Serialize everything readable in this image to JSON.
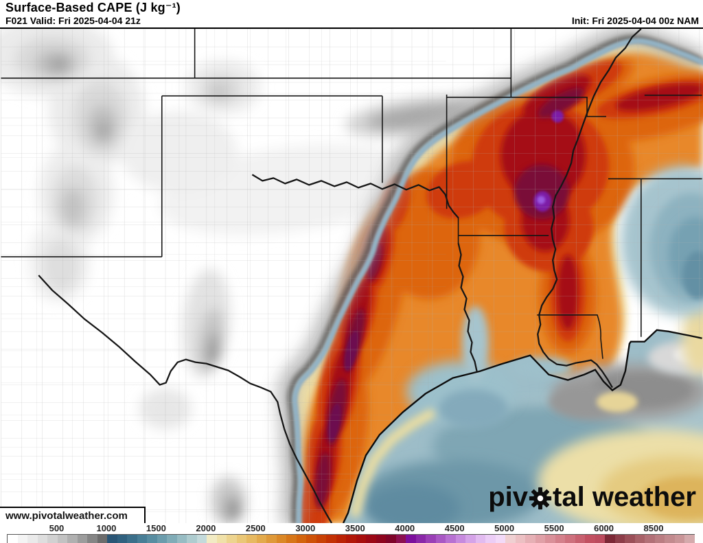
{
  "header": {
    "title": "Surface-Based CAPE (J kg⁻¹)",
    "valid": "F021 Valid: Fri 2025-04-04 21z",
    "init": "Init: Fri 2025-04-04 00z NAM",
    "model": "NAM"
  },
  "watermark": {
    "url": "www.pivotalweather.com"
  },
  "logo": {
    "left": "piv",
    "right": "tal weather"
  },
  "colorbar": {
    "unit": "J kg-1",
    "labels": [
      "500",
      "1000",
      "1500",
      "2000",
      "2500",
      "3000",
      "3500",
      "4000",
      "4500",
      "5000",
      "5500",
      "6000",
      "8500"
    ],
    "segments_per_label": 5,
    "colors": [
      "#ffffff",
      "#f4f4f4",
      "#eaeaea",
      "#dedede",
      "#d1d1d1",
      "#c2c2c2",
      "#b0b0b0",
      "#9c9c9c",
      "#858585",
      "#6c6c6c",
      "#2a5575",
      "#30617f",
      "#3b6f8a",
      "#487e96",
      "#588da1",
      "#6b9cac",
      "#80acb7",
      "#97bcc3",
      "#aecccf",
      "#c4dadb",
      "#f2ebc4",
      "#f0e1a9",
      "#edd48f",
      "#eac777",
      "#e7b961",
      "#e3aa4c",
      "#df9939",
      "#db8827",
      "#d77618",
      "#d3640d",
      "#ce5208",
      "#c94105",
      "#c33104",
      "#bb2305",
      "#b21708",
      "#a80e0d",
      "#9c0815",
      "#8e051e",
      "#7f0429",
      "#8c1050",
      "#7c0f9c",
      "#8a27a8",
      "#9a3fb6",
      "#a958c4",
      "#b871d2",
      "#c78ade",
      "#d5a3e8",
      "#e2bbf0",
      "#eccdf6",
      "#f3daf8",
      "#f0d0d2",
      "#ecc0c3",
      "#e6b0b5",
      "#e0a0a7",
      "#da9099",
      "#d4808b",
      "#ce707d",
      "#c8606f",
      "#c25061",
      "#bc4b5e",
      "#7c2836",
      "#8d3d49",
      "#9b4f58",
      "#a86168",
      "#b27077",
      "#ba7d82",
      "#c28a8e",
      "#c99598",
      "#d4aaac"
    ]
  },
  "map_palette": {
    "low_gray": "#bdbdbd",
    "marine_blue": "#9dbdc8",
    "transition_cream": "#f1e1a6",
    "moderate_orange": "#e8882b",
    "high_red": "#cf3a0d",
    "very_high_dark_red": "#a50d12",
    "extreme_maroon": "#7a0a38",
    "extreme_purple": "#7d1ca6"
  }
}
